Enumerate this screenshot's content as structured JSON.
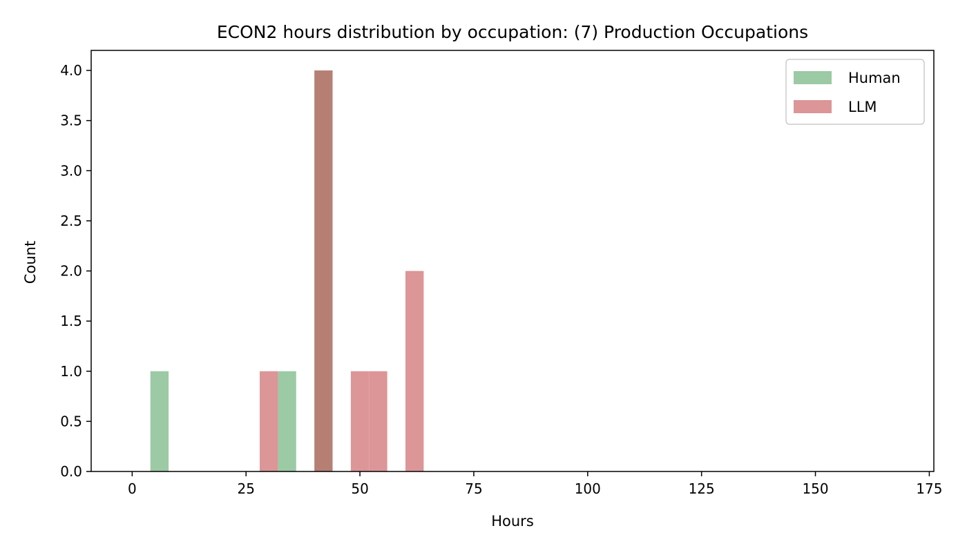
{
  "chart_data": {
    "type": "bar",
    "title": "ECON2 hours distribution by occupation: (7) Production Occupations",
    "xlabel": "Hours",
    "ylabel": "Count",
    "xlim": [
      -9,
      176
    ],
    "ylim": [
      0,
      4.2
    ],
    "xticks": [
      0,
      25,
      50,
      75,
      100,
      125,
      150,
      175
    ],
    "yticks": [
      0.0,
      0.5,
      1.0,
      1.5,
      2.0,
      2.5,
      3.0,
      3.5,
      4.0
    ],
    "xtick_labels": [
      "0",
      "25",
      "50",
      "75",
      "100",
      "125",
      "150",
      "175"
    ],
    "ytick_labels": [
      "0.0",
      "0.5",
      "1.0",
      "1.5",
      "2.0",
      "2.5",
      "3.0",
      "3.5",
      "4.0"
    ],
    "grid": false,
    "legend_position": "top-right",
    "series": [
      {
        "name": "Human",
        "color": "#9bcaa4",
        "bins": [
          {
            "x0": 4,
            "x1": 8,
            "count": 1
          },
          {
            "x0": 32,
            "x1": 36,
            "count": 1
          },
          {
            "x0": 40,
            "x1": 44,
            "count": 4
          }
        ]
      },
      {
        "name": "LLM",
        "color": "#dc9698",
        "bins": [
          {
            "x0": 28,
            "x1": 32,
            "count": 1
          },
          {
            "x0": 40,
            "x1": 44,
            "count": 4
          },
          {
            "x0": 48,
            "x1": 52,
            "count": 1
          },
          {
            "x0": 52,
            "x1": 56,
            "count": 1
          },
          {
            "x0": 60,
            "x1": 64,
            "count": 2
          }
        ]
      }
    ],
    "overlap_color": "#b58073"
  }
}
